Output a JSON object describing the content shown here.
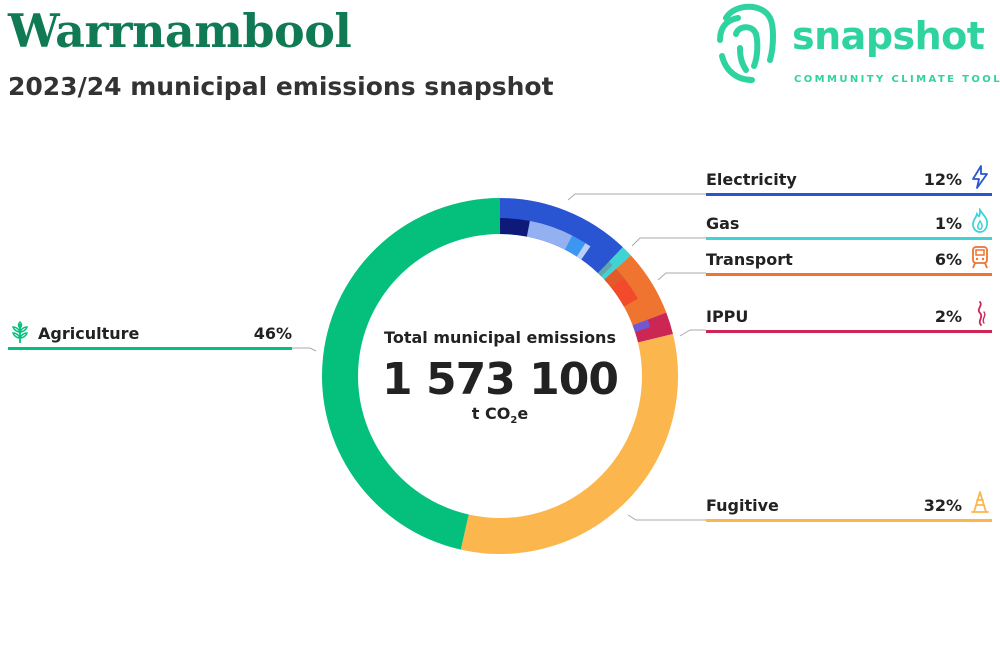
{
  "header": {
    "title": "Warrnambool",
    "subtitle": "2023/24 municipal emissions snapshot"
  },
  "logo": {
    "word": "snapshot",
    "tagline": "COMMUNITY CLIMATE TOOL",
    "color": "#2fd3a0"
  },
  "center": {
    "label": "Total municipal emissions",
    "value": "1 573 100",
    "unit_prefix": "t CO",
    "unit_sub": "2",
    "unit_suffix": "e"
  },
  "chart_data": {
    "type": "pie",
    "variant": "donut",
    "total": "1 573 100",
    "unit": "t CO2e",
    "series": [
      {
        "name": "Electricity",
        "value": 12,
        "color": "#2a55d2",
        "icon": "lightning-icon",
        "sub": [
          {
            "value": 3.0,
            "color": "#0d1a7a"
          },
          {
            "value": 4.5,
            "color": "#93b0f0"
          },
          {
            "value": 1.5,
            "color": "#3c97f0"
          },
          {
            "value": 0.6,
            "color": "#b9d0f7"
          }
        ]
      },
      {
        "name": "Gas",
        "value": 1,
        "color": "#3fd3d5",
        "icon": "flame-icon",
        "sub": [
          {
            "value": 0.5,
            "color": "#62a4a8"
          }
        ]
      },
      {
        "name": "Transport",
        "value": 6,
        "color": "#ee7430",
        "icon": "train-icon",
        "sub": [
          {
            "value": 1.2,
            "color": "#e05a2a"
          },
          {
            "value": 2.5,
            "color": "#f24a2a"
          }
        ]
      },
      {
        "name": "IPPU",
        "value": 2,
        "color": "#cc2654",
        "icon": "smoke-icon",
        "sub": [
          {
            "value": 0.8,
            "color": "#7158d2"
          }
        ]
      },
      {
        "name": "Fugitive",
        "value": 32,
        "color": "#fbb64e",
        "icon": "oil-rig-icon",
        "sub": []
      },
      {
        "name": "Agriculture",
        "value": 46,
        "color": "#04c07c",
        "icon": "wheat-icon",
        "sub": []
      }
    ]
  },
  "legend": [
    {
      "label": "Electricity",
      "pct": "12%",
      "color": "#2a55d2"
    },
    {
      "label": "Gas",
      "pct": "1%",
      "color": "#3fd3d5"
    },
    {
      "label": "Transport",
      "pct": "6%",
      "color": "#ee7430"
    },
    {
      "label": "IPPU",
      "pct": "2%",
      "color": "#cc2654"
    },
    {
      "label": "Fugitive",
      "pct": "32%",
      "color": "#fbb64e"
    },
    {
      "label": "Agriculture",
      "pct": "46%",
      "color": "#04c07c"
    }
  ]
}
